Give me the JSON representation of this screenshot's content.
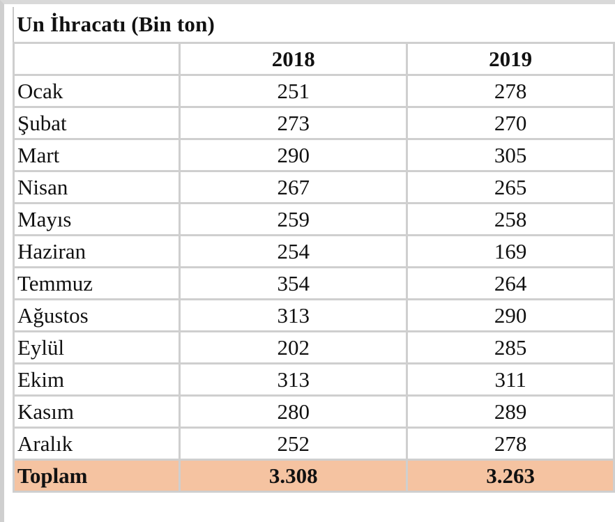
{
  "title": "Un İhracatı (Bin ton)",
  "columns": [
    "",
    "2018",
    "2019"
  ],
  "rows": [
    {
      "month": "Ocak",
      "y2018": "251",
      "y2019": "278"
    },
    {
      "month": "Şubat",
      "y2018": "273",
      "y2019": "270"
    },
    {
      "month": "Mart",
      "y2018": "290",
      "y2019": "305"
    },
    {
      "month": "Nisan",
      "y2018": "267",
      "y2019": "265"
    },
    {
      "month": "Mayıs",
      "y2018": "259",
      "y2019": "258"
    },
    {
      "month": "Haziran",
      "y2018": "254",
      "y2019": "169"
    },
    {
      "month": "Temmuz",
      "y2018": "354",
      "y2019": "264"
    },
    {
      "month": "Ağustos",
      "y2018": "313",
      "y2019": "290"
    },
    {
      "month": "Eylül",
      "y2018": "202",
      "y2019": "285"
    },
    {
      "month": "Ekim",
      "y2018": "313",
      "y2019": "311"
    },
    {
      "month": "Kasım",
      "y2018": "280",
      "y2019": "289"
    },
    {
      "month": "Aralık",
      "y2018": "252",
      "y2019": "278"
    }
  ],
  "total": {
    "label": "Toplam",
    "y2018": "3.308",
    "y2019": "3.263"
  },
  "colors": {
    "total_row_bg": "#f5c3a1",
    "grid": "#cfcfcf"
  }
}
